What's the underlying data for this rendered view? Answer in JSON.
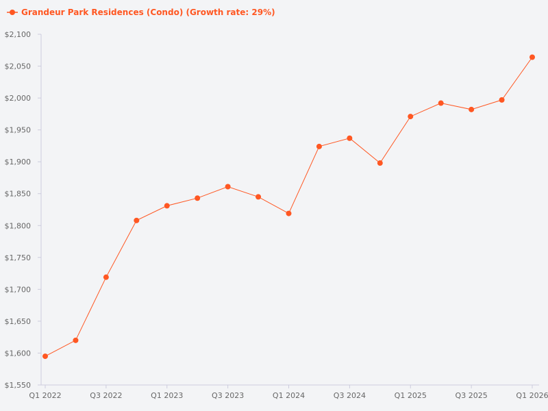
{
  "chart_data": {
    "type": "line",
    "title": "",
    "xlabel": "",
    "ylabel": "",
    "legend": {
      "placement": "top-left",
      "label": "Grandeur Park Residences (Condo) (Growth rate: 29%)"
    },
    "grid": false,
    "ylim": [
      1550,
      2100
    ],
    "y_ticks": [
      1550,
      1600,
      1650,
      1700,
      1750,
      1800,
      1850,
      1900,
      1950,
      2000,
      2050,
      2100
    ],
    "y_tick_labels": [
      "$1,550",
      "$1,600",
      "$1,650",
      "$1,700",
      "$1,750",
      "$1,800",
      "$1,850",
      "$1,900",
      "$1,950",
      "$2,000",
      "$2,050",
      "$2,100"
    ],
    "x_tick_labels": [
      "Q1 2022",
      "Q3 2022",
      "Q1 2023",
      "Q3 2023",
      "Q1 2024",
      "Q3 2024",
      "Q1 2025",
      "Q3 2025",
      "Q1 2026"
    ],
    "x_tick_every": 2,
    "categories": [
      "Q1 2022",
      "Q2 2022",
      "Q3 2022",
      "Q4 2022",
      "Q1 2023",
      "Q2 2023",
      "Q3 2023",
      "Q4 2023",
      "Q1 2024",
      "Q2 2024",
      "Q3 2024",
      "Q4 2024",
      "Q1 2025",
      "Q2 2025",
      "Q3 2025",
      "Q4 2025",
      "Q1 2026"
    ],
    "series": [
      {
        "name": "Grandeur Park Residences (Condo) (Growth rate: 29%)",
        "color": "#ff5722",
        "values": [
          1595,
          1620,
          1719,
          1808,
          1831,
          1843,
          1861,
          1845,
          1819,
          1924,
          1937,
          1898,
          1971,
          1992,
          1982,
          1997,
          2064
        ]
      }
    ],
    "colors": {
      "line": "#ff5722",
      "axis": "#ccccdd",
      "tick_text": "#666666",
      "background": "#f3f4f6"
    }
  }
}
